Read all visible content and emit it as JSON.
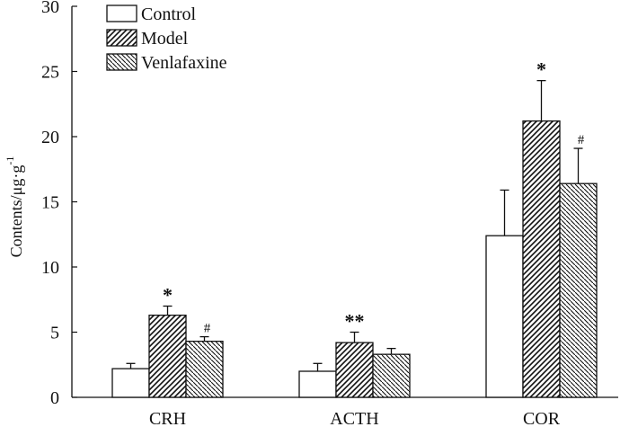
{
  "chart_data": {
    "type": "bar",
    "title": "",
    "xlabel": "",
    "ylabel": "Contents/μg·g",
    "ylabel_superscript": "-1",
    "ylim": [
      0,
      30
    ],
    "yticks": [
      0,
      5,
      10,
      15,
      20,
      25,
      30
    ],
    "categories": [
      "CRH",
      "ACTH",
      "COR"
    ],
    "series": [
      {
        "name": "Control",
        "fill": "none",
        "values": [
          2.2,
          2.0,
          12.4
        ],
        "errors": [
          0.4,
          0.6,
          3.5
        ]
      },
      {
        "name": "Model",
        "fill": "diagonal-up",
        "values": [
          6.3,
          4.2,
          21.2
        ],
        "errors": [
          0.7,
          0.8,
          3.1
        ]
      },
      {
        "name": "Venlafaxine",
        "fill": "diagonal-down",
        "values": [
          4.3,
          3.3,
          16.4
        ],
        "errors": [
          0.35,
          0.45,
          2.7
        ]
      }
    ],
    "annotations": [
      {
        "text": "*",
        "category": "CRH",
        "series": "Model"
      },
      {
        "text": "#",
        "category": "CRH",
        "series": "Venlafaxine"
      },
      {
        "text": "**",
        "category": "ACTH",
        "series": "Model"
      },
      {
        "text": "*",
        "category": "COR",
        "series": "Model"
      },
      {
        "text": "#",
        "category": "COR",
        "series": "Venlafaxine"
      }
    ],
    "legend_position": "top-left",
    "grid": false
  },
  "colors": {
    "ink": "#111111",
    "background": "#ffffff"
  }
}
